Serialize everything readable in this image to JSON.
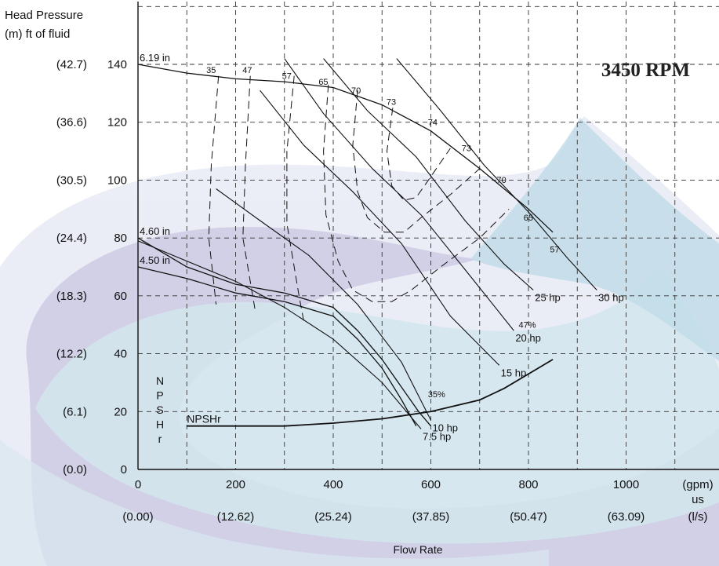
{
  "chart_data": {
    "type": "line",
    "title": "3450 RPM",
    "ylabel_line1": "Head Pressure",
    "ylabel_line2": "(m) ft of fluid",
    "xlabel": "Flow Rate",
    "xlim": [
      0,
      1100
    ],
    "ylim": [
      0,
      150
    ],
    "grid": true,
    "x_ticks": [
      {
        "value": 0,
        "gpm": "0",
        "ls": "(0.00)"
      },
      {
        "value": 200,
        "gpm": "200",
        "ls": "(12.62)"
      },
      {
        "value": 400,
        "gpm": "400",
        "ls": "(25.24)"
      },
      {
        "value": 600,
        "gpm": "600",
        "ls": "(37.85)"
      },
      {
        "value": 800,
        "gpm": "800",
        "ls": "(50.47)"
      },
      {
        "value": 1000,
        "gpm": "1000",
        "ls": "(63.09)"
      }
    ],
    "x_unit_gpm": "(gpm)",
    "x_unit_us": "us",
    "x_unit_ls": "(l/s)",
    "y_ticks": [
      {
        "value": 0,
        "ft": "0",
        "m": "(0.0)"
      },
      {
        "value": 20,
        "ft": "20",
        "m": "(6.1)"
      },
      {
        "value": 40,
        "ft": "40",
        "m": "(12.2)"
      },
      {
        "value": 60,
        "ft": "60",
        "m": "(18.3)"
      },
      {
        "value": 80,
        "ft": "80",
        "m": "(24.4)"
      },
      {
        "value": 100,
        "ft": "100",
        "m": "(30.5)"
      },
      {
        "value": 120,
        "ft": "120",
        "m": "(36.6)"
      },
      {
        "value": 140,
        "ft": "140",
        "m": "(42.7)"
      }
    ],
    "impeller_curves": [
      {
        "name": "6.19 in",
        "points": [
          [
            0,
            140
          ],
          [
            100,
            137
          ],
          [
            200,
            135
          ],
          [
            300,
            134
          ],
          [
            400,
            132
          ],
          [
            500,
            126
          ],
          [
            600,
            117
          ],
          [
            700,
            104
          ],
          [
            800,
            90
          ],
          [
            850,
            82
          ]
        ]
      },
      {
        "name": "4.60 in",
        "points": [
          [
            0,
            80
          ],
          [
            100,
            70
          ],
          [
            200,
            64
          ],
          [
            300,
            61
          ],
          [
            400,
            56
          ],
          [
            450,
            48
          ],
          [
            500,
            38
          ],
          [
            550,
            26
          ],
          [
            575,
            20
          ],
          [
            600,
            15
          ]
        ]
      },
      {
        "name": "4.50 in",
        "points": [
          [
            0,
            70
          ],
          [
            100,
            66
          ],
          [
            200,
            61
          ],
          [
            300,
            58
          ],
          [
            400,
            53
          ],
          [
            450,
            45
          ],
          [
            500,
            35
          ],
          [
            540,
            24
          ],
          [
            570,
            15
          ]
        ]
      }
    ],
    "power_lines": [
      {
        "name": "7.5 hp",
        "points": [
          [
            0,
            79
          ],
          [
            100,
            72
          ],
          [
            200,
            65
          ],
          [
            300,
            56
          ],
          [
            400,
            45
          ],
          [
            500,
            30
          ],
          [
            580,
            14
          ]
        ]
      },
      {
        "name": "10 hp",
        "points": [
          [
            160,
            97
          ],
          [
            250,
            86
          ],
          [
            350,
            74
          ],
          [
            450,
            57
          ],
          [
            540,
            37
          ],
          [
            600,
            17
          ]
        ]
      },
      {
        "name": "15 hp",
        "points": [
          [
            250,
            131
          ],
          [
            340,
            112
          ],
          [
            440,
            96
          ],
          [
            540,
            78
          ],
          [
            640,
            53
          ],
          [
            740,
            36
          ]
        ]
      },
      {
        "name": "20 hp",
        "points": [
          [
            300,
            142
          ],
          [
            380,
            123
          ],
          [
            480,
            104
          ],
          [
            580,
            88
          ],
          [
            680,
            67
          ],
          [
            770,
            48
          ]
        ]
      },
      {
        "name": "25 hp",
        "points": [
          [
            380,
            142
          ],
          [
            470,
            124
          ],
          [
            570,
            108
          ],
          [
            670,
            86
          ],
          [
            750,
            71
          ],
          [
            810,
            62
          ]
        ]
      },
      {
        "name": "30 hp",
        "points": [
          [
            530,
            142
          ],
          [
            620,
            124
          ],
          [
            710,
            105
          ],
          [
            800,
            89
          ],
          [
            880,
            73
          ],
          [
            940,
            62
          ]
        ]
      }
    ],
    "efficiency_contours": [
      {
        "label": "35",
        "points": [
          [
            165,
            136
          ],
          [
            150,
            105
          ],
          [
            145,
            80
          ],
          [
            160,
            57
          ]
        ]
      },
      {
        "label": "47",
        "points": [
          [
            230,
            136
          ],
          [
            220,
            105
          ],
          [
            215,
            80
          ],
          [
            240,
            55
          ]
        ]
      },
      {
        "label": "57",
        "points": [
          [
            320,
            136
          ],
          [
            305,
            110
          ],
          [
            305,
            85
          ],
          [
            330,
            60
          ],
          [
            340,
            51
          ]
        ]
      },
      {
        "label": "65",
        "points": [
          [
            390,
            133
          ],
          [
            380,
            110
          ],
          [
            385,
            88
          ],
          [
            410,
            72
          ],
          [
            440,
            62
          ],
          [
            480,
            58
          ],
          [
            520,
            58
          ],
          [
            560,
            62
          ],
          [
            620,
            70
          ],
          [
            700,
            80
          ],
          [
            760,
            90
          ]
        ]
      },
      {
        "label": "70",
        "points": [
          [
            450,
            131
          ],
          [
            440,
            112
          ],
          [
            450,
            96
          ],
          [
            470,
            87
          ],
          [
            505,
            82
          ],
          [
            545,
            82
          ],
          [
            580,
            87
          ],
          [
            640,
            95
          ],
          [
            700,
            104
          ]
        ]
      },
      {
        "label": "73",
        "points": [
          [
            522,
            125
          ],
          [
            510,
            110
          ],
          [
            520,
            98
          ],
          [
            545,
            93
          ],
          [
            570,
            94
          ],
          [
            595,
            100
          ],
          [
            640,
            111
          ]
        ]
      }
    ],
    "efficiency_labels": [
      {
        "text": "35",
        "x": 140,
        "y": 137
      },
      {
        "text": "47",
        "x": 214,
        "y": 137
      },
      {
        "text": "57",
        "x": 295,
        "y": 135
      },
      {
        "text": "65",
        "x": 370,
        "y": 133
      },
      {
        "text": "70",
        "x": 437,
        "y": 130
      },
      {
        "text": "73",
        "x": 509,
        "y": 126
      },
      {
        "text": "74",
        "x": 594,
        "y": 119
      },
      {
        "text": "73",
        "x": 663,
        "y": 110
      },
      {
        "text": "70",
        "x": 735,
        "y": 99
      },
      {
        "text": "65",
        "x": 790,
        "y": 86
      },
      {
        "text": "57",
        "x": 844,
        "y": 75
      },
      {
        "text": "47%",
        "x": 780,
        "y": 49
      },
      {
        "text": "35%",
        "x": 594,
        "y": 25
      }
    ],
    "npshr_curve": {
      "name": "NPSHr",
      "points": [
        [
          100,
          15
        ],
        [
          200,
          15
        ],
        [
          300,
          15
        ],
        [
          400,
          16
        ],
        [
          500,
          17.5
        ],
        [
          600,
          20
        ],
        [
          700,
          24
        ],
        [
          750,
          28
        ],
        [
          800,
          33
        ],
        [
          850,
          38
        ]
      ]
    },
    "npshr_vertical": [
      "N",
      "P",
      "S",
      "H",
      "r"
    ]
  }
}
